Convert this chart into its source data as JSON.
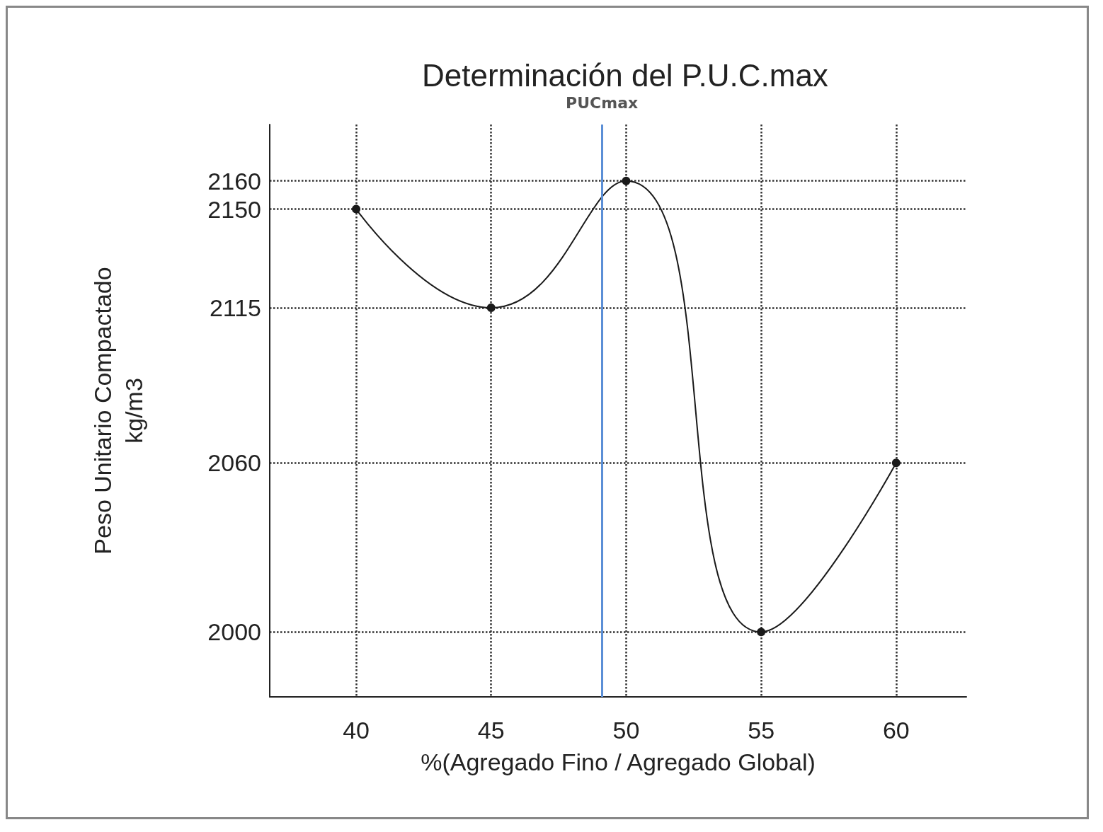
{
  "chart_data": {
    "type": "line",
    "title": "Determinación del P.U.C.max",
    "xlabel": "%(Agregado Fino / Agregado Global)",
    "ylabel": "Peso Unitario Compactado\nkg/m3",
    "x": [
      40,
      45,
      50,
      55,
      60
    ],
    "series": [
      {
        "color": "#1a1a1a",
        "values": [
          2150,
          2115,
          2160,
          2000,
          2060
        ]
      }
    ],
    "xlim": [
      36.8,
      62.6
    ],
    "xticks": [
      40,
      45,
      50,
      55,
      60
    ],
    "ylim": [
      1977,
      2180
    ],
    "yticks": [
      2000,
      2060,
      2115,
      2150,
      2160
    ],
    "ref_lines": [
      {
        "axis": "x",
        "value": 49.1,
        "label": "PUCmax",
        "color": "#5b8fd6",
        "line_style": "solid"
      }
    ],
    "grid": true,
    "marker": "circle",
    "line_style": "solid"
  }
}
